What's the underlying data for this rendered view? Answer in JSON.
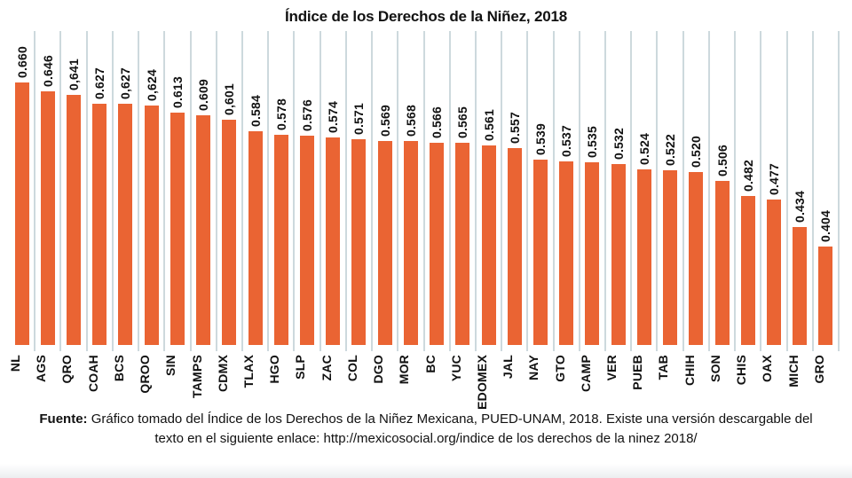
{
  "title": "Índice de los Derechos de la Niñez, 2018",
  "colors": {
    "bar": "#EA6433",
    "gridline": "#CDD9DD",
    "text": "#111111",
    "background": "#FFFFFF"
  },
  "chart_data": {
    "type": "bar",
    "title": "Índice de los Derechos de la Niñez, 2018",
    "xlabel": "",
    "ylabel": "",
    "ylim": [
      0.25,
      0.74
    ],
    "grid": "vertical separators between bars, no horizontal axis line",
    "legend": "none",
    "categories": [
      "NL",
      "AGS",
      "QRO",
      "COAH",
      "BCS",
      "QROO",
      "SIN",
      "TAMPS",
      "CDMX",
      "TLAX",
      "HGO",
      "SLP",
      "ZAC",
      "COL",
      "DGO",
      "MOR",
      "BC",
      "YUC",
      "EDOMEX",
      "JAL",
      "NAY",
      "GTO",
      "CAMP",
      "VER",
      "PUEB",
      "TAB",
      "CHIH",
      "SON",
      "CHIS",
      "OAX",
      "MICH",
      "GRO"
    ],
    "values": [
      0.66,
      0.646,
      0.641,
      0.627,
      0.627,
      0.624,
      0.613,
      0.609,
      0.601,
      0.584,
      0.578,
      0.576,
      0.574,
      0.571,
      0.569,
      0.568,
      0.566,
      0.565,
      0.561,
      0.557,
      0.539,
      0.537,
      0.535,
      0.532,
      0.524,
      0.522,
      0.52,
      0.506,
      0.482,
      0.477,
      0.434,
      0.404
    ],
    "value_labels": [
      "0.660",
      "0.646",
      "0,641",
      "0.627",
      "0,627",
      "0,624",
      "0.613",
      "0.609",
      "0,601",
      "0.584",
      "0.578",
      "0.576",
      "0.574",
      "0.571",
      "0.569",
      "0.568",
      "0.566",
      "0.565",
      "0.561",
      "0.557",
      "0.539",
      "0.537",
      "0.535",
      "0.532",
      "0.524",
      "0.522",
      "0.520",
      "0.506",
      "0.482",
      "0.477",
      "0.434",
      "0.404"
    ]
  },
  "footer": {
    "source_label": "Fuente:",
    "line1_rest": " Gráfico tomado del Índice de los Derechos de la Niñez Mexicana, PUED-UNAM, 2018. Existe una versión descargable del",
    "line2": "texto en el siguiente enlace: http://mexicosocial.org/indice de los derechos de la ninez 2018/"
  }
}
